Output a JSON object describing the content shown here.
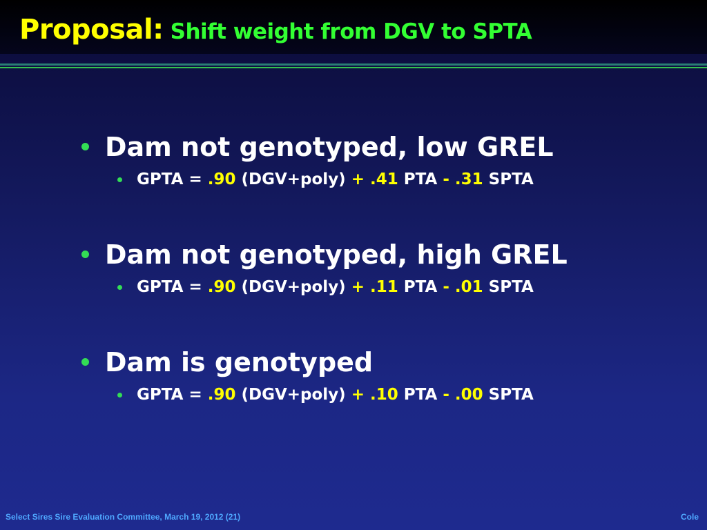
{
  "slide": {
    "title": "Proposal:",
    "subtitle": "Shift weight from DGV to SPTA"
  },
  "items": [
    {
      "heading": "Dam not genotyped, low GREL",
      "formula": {
        "prefix": "GPTA = ",
        "w1": ".90",
        "t1": " (DGV+poly) ",
        "op1": "+",
        "w2": ".41",
        "t2": " PTA ",
        "op2": "-",
        "w3": ".31",
        "t3": " SPTA"
      }
    },
    {
      "heading": "Dam not genotyped, high GREL",
      "formula": {
        "prefix": "GPTA = ",
        "w1": ".90",
        "t1": " (DGV+poly) ",
        "op1": "+",
        "w2": ".11",
        "t2": " PTA ",
        "op2": "-",
        "w3": ".01",
        "t3": " SPTA"
      }
    },
    {
      "heading": "Dam is genotyped",
      "formula": {
        "prefix": "GPTA = ",
        "w1": ".90",
        "t1": " (DGV+poly) ",
        "op1": "+",
        "w2": ".10",
        "t2": " PTA ",
        "op2": "-",
        "w3": ".00",
        "t3": " SPTA"
      }
    }
  ],
  "footer": {
    "left": "Select Sires Sire Evaluation Committee, March 19, 2012 (21)",
    "right": "Cole"
  },
  "colors": {
    "title": "#ffff00",
    "subtitle": "#33ff33",
    "bullet": "#33dd55",
    "footer": "#4fa8ff"
  }
}
